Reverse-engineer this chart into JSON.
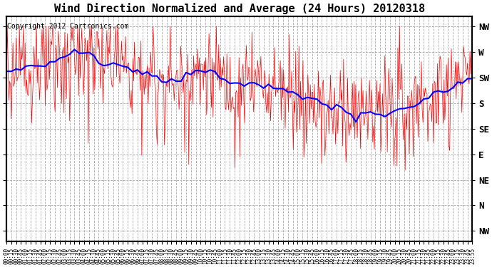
{
  "title": "Wind Direction Normalized and Average (24 Hours) 20120318",
  "copyright": "Copyright 2012 Cartronics.com",
  "ytick_labels": [
    "NW",
    "W",
    "SW",
    "S",
    "SE",
    "E",
    "NE",
    "N",
    "NW"
  ],
  "ytick_values": [
    8,
    7,
    6,
    5,
    4,
    3,
    2,
    1,
    0
  ],
  "ylim": [
    -0.4,
    8.4
  ],
  "plot_bg_color": "#ffffff",
  "red_color": "#ff0000",
  "blue_color": "#0000ff",
  "title_fontsize": 11,
  "copyright_fontsize": 7,
  "ylabel_fontsize": 9,
  "xtick_fontsize": 5.5
}
